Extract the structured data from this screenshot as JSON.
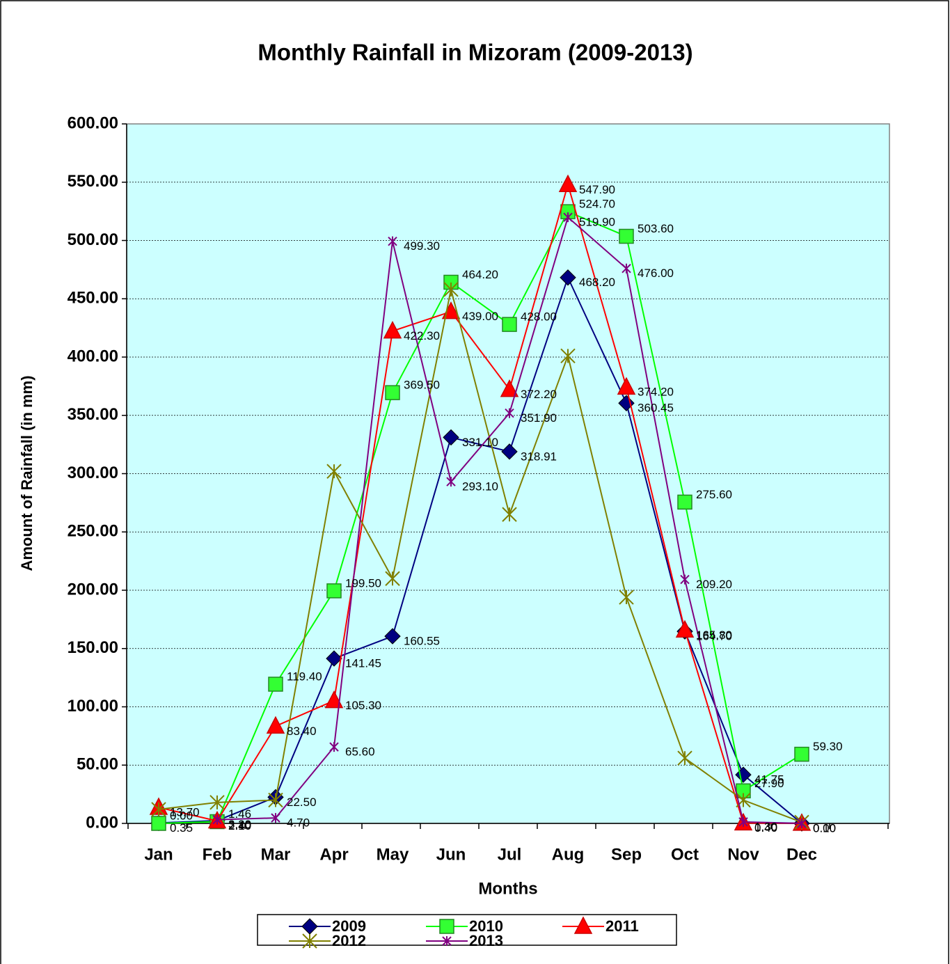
{
  "chart_data": {
    "type": "line",
    "title": "Monthly Rainfall in Mizoram (2009-2013)",
    "x_label": "Months",
    "y_label": "Amount of Rainfall (in mm)",
    "categories": [
      "Jan",
      "Feb",
      "Mar",
      "Apr",
      "May",
      "Jun",
      "Jul",
      "Aug",
      "Sep",
      "Oct",
      "Nov",
      "Dec"
    ],
    "ylim": [
      0,
      600
    ],
    "yticks": [
      {
        "value": 0,
        "label": "0.00"
      },
      {
        "value": 50,
        "label": "50.00"
      },
      {
        "value": 100,
        "label": "100.00"
      },
      {
        "value": 150,
        "label": "150.00"
      },
      {
        "value": 200,
        "label": "200.00"
      },
      {
        "value": 250,
        "label": "250.00"
      },
      {
        "value": 300,
        "label": "300.00"
      },
      {
        "value": 350,
        "label": "350.00"
      },
      {
        "value": 400,
        "label": "400.00"
      },
      {
        "value": 450,
        "label": "450.00"
      },
      {
        "value": 500,
        "label": "500.00"
      },
      {
        "value": 550,
        "label": "550.00"
      },
      {
        "value": 600,
        "label": "600.00"
      }
    ],
    "grid": true,
    "background": "#ccffff",
    "series": [
      {
        "name": "2009",
        "color": "#000080",
        "marker": "diamond",
        "values": [
          0.35,
          2.4,
          22.5,
          141.45,
          160.55,
          331.1,
          318.91,
          468.2,
          360.45,
          164.7,
          41.75,
          0
        ],
        "value_labels": [
          "0.35",
          "2.40",
          "22.50",
          "141.45",
          "160.55",
          "331.10",
          "318.91",
          "468.20",
          "360.45",
          "164.70",
          "41.75",
          "0.00"
        ]
      },
      {
        "name": "2010",
        "color": "#00ff00",
        "marker": "square",
        "values": [
          0,
          1.46,
          119.4,
          199.5,
          369.5,
          464.2,
          428,
          524.7,
          503.6,
          275.6,
          27.9,
          59.3
        ],
        "value_labels": [
          "0.00",
          "1.46",
          "119.40",
          "199.50",
          "369.50",
          "464.20",
          "428.00",
          "524.70",
          "503.60",
          "275.60",
          "27.90",
          "59.30"
        ]
      },
      {
        "name": "2011",
        "color": "#ff0000",
        "marker": "triangle",
        "values": [
          13.7,
          2.1,
          83.4,
          105.3,
          422.3,
          439,
          372.2,
          547.9,
          374.2,
          165.8,
          0.4,
          0.1
        ],
        "value_labels": [
          "13.70",
          "2.10",
          "83.40",
          "105.30",
          "422.30",
          "439.00",
          "372.20",
          "547.90",
          "374.20",
          "165.80",
          "0.40",
          "0.10"
        ]
      },
      {
        "name": "2012",
        "color": "#808000",
        "marker": "star",
        "values": [
          12,
          18,
          20,
          302,
          210,
          458,
          265,
          401,
          194,
          56,
          20,
          1
        ]
      },
      {
        "name": "2013",
        "color": "#800080",
        "marker": "xstar",
        "values": [
          null,
          3.2,
          4.7,
          65.6,
          499.3,
          293.1,
          351.9,
          519.9,
          476,
          209.2,
          1.3,
          0
        ],
        "value_labels": [
          null,
          "3.20",
          "4.70",
          "65.60",
          "499.30",
          "293.10",
          "351.90",
          "519.90",
          "476.00",
          "209.20",
          "1.30",
          null
        ]
      }
    ]
  }
}
